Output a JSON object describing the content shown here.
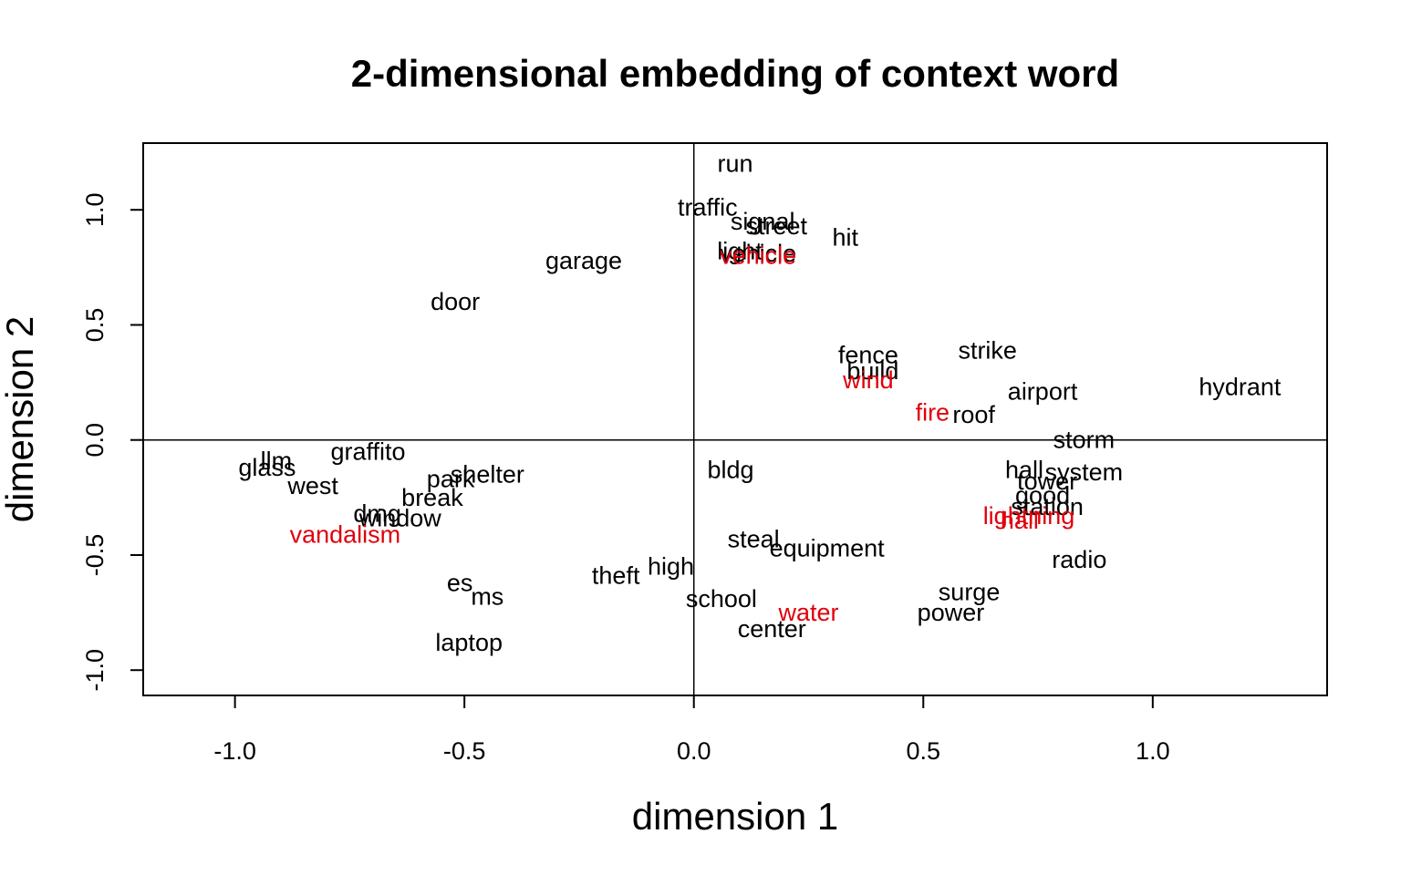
{
  "chart_data": {
    "type": "scatter",
    "title": "2-dimensional embedding of context word",
    "xlabel": "dimension 1",
    "ylabel": "dimension 2",
    "xlim": [
      -1.2,
      1.38
    ],
    "ylim": [
      -1.11,
      1.29
    ],
    "xticks": [
      -1.0,
      -0.5,
      0.0,
      0.5,
      1.0
    ],
    "xtick_labels": [
      "-1.0",
      "-0.5",
      "0.0",
      "0.5",
      "1.0"
    ],
    "yticks": [
      -1.0,
      -0.5,
      0.0,
      0.5,
      1.0
    ],
    "ytick_labels": [
      "-1.0",
      "-0.5",
      "0.0",
      "0.5",
      "1.0"
    ],
    "reference_lines": {
      "x": 0,
      "y": 0
    },
    "grid": false,
    "colors": {
      "context": "#000000",
      "peril": "#e0000b"
    },
    "points": [
      {
        "label": "run",
        "x": 0.09,
        "y": 1.2,
        "group": "context"
      },
      {
        "label": "traffic",
        "x": 0.03,
        "y": 1.01,
        "group": "context"
      },
      {
        "label": "signal",
        "x": 0.15,
        "y": 0.95,
        "group": "context"
      },
      {
        "label": "street",
        "x": 0.18,
        "y": 0.93,
        "group": "context"
      },
      {
        "label": "hit",
        "x": 0.33,
        "y": 0.88,
        "group": "context"
      },
      {
        "label": "light",
        "x": 0.1,
        "y": 0.82,
        "group": "context"
      },
      {
        "label": "vehicle",
        "x": 0.14,
        "y": 0.81,
        "group": "context"
      },
      {
        "label": "vehicle",
        "x": 0.14,
        "y": 0.8,
        "group": "peril"
      },
      {
        "label": "garage",
        "x": -0.24,
        "y": 0.78,
        "group": "context"
      },
      {
        "label": "door",
        "x": -0.52,
        "y": 0.6,
        "group": "context"
      },
      {
        "label": "fence",
        "x": 0.38,
        "y": 0.37,
        "group": "context"
      },
      {
        "label": "strike",
        "x": 0.64,
        "y": 0.39,
        "group": "context"
      },
      {
        "label": "build",
        "x": 0.39,
        "y": 0.3,
        "group": "context"
      },
      {
        "label": "wind",
        "x": 0.38,
        "y": 0.26,
        "group": "peril"
      },
      {
        "label": "airport",
        "x": 0.76,
        "y": 0.21,
        "group": "context"
      },
      {
        "label": "hydrant",
        "x": 1.19,
        "y": 0.23,
        "group": "context"
      },
      {
        "label": "fire",
        "x": 0.52,
        "y": 0.12,
        "group": "peril"
      },
      {
        "label": "roof",
        "x": 0.61,
        "y": 0.11,
        "group": "context"
      },
      {
        "label": "storm",
        "x": 0.85,
        "y": 0.0,
        "group": "context"
      },
      {
        "label": "llm",
        "x": -0.91,
        "y": -0.09,
        "group": "context"
      },
      {
        "label": "graffito",
        "x": -0.71,
        "y": -0.05,
        "group": "context"
      },
      {
        "label": "glass",
        "x": -0.93,
        "y": -0.12,
        "group": "context"
      },
      {
        "label": "shelter",
        "x": -0.45,
        "y": -0.15,
        "group": "context"
      },
      {
        "label": "park",
        "x": -0.53,
        "y": -0.17,
        "group": "context"
      },
      {
        "label": "west",
        "x": -0.83,
        "y": -0.2,
        "group": "context"
      },
      {
        "label": "bldg",
        "x": 0.08,
        "y": -0.13,
        "group": "context"
      },
      {
        "label": "hall",
        "x": 0.72,
        "y": -0.13,
        "group": "context"
      },
      {
        "label": "system",
        "x": 0.85,
        "y": -0.14,
        "group": "context"
      },
      {
        "label": "tower",
        "x": 0.77,
        "y": -0.18,
        "group": "context"
      },
      {
        "label": "break",
        "x": -0.57,
        "y": -0.25,
        "group": "context"
      },
      {
        "label": "good",
        "x": 0.76,
        "y": -0.24,
        "group": "context"
      },
      {
        "label": "station",
        "x": 0.77,
        "y": -0.29,
        "group": "context"
      },
      {
        "label": "dmg",
        "x": -0.69,
        "y": -0.32,
        "group": "context"
      },
      {
        "label": "window",
        "x": -0.64,
        "y": -0.34,
        "group": "context"
      },
      {
        "label": "lightning",
        "x": 0.73,
        "y": -0.33,
        "group": "peril"
      },
      {
        "label": "hail",
        "x": 0.71,
        "y": -0.35,
        "group": "peril"
      },
      {
        "label": "vandalism",
        "x": -0.76,
        "y": -0.41,
        "group": "peril"
      },
      {
        "label": "steal",
        "x": 0.13,
        "y": -0.43,
        "group": "context"
      },
      {
        "label": "equipment",
        "x": 0.29,
        "y": -0.47,
        "group": "context"
      },
      {
        "label": "radio",
        "x": 0.84,
        "y": -0.52,
        "group": "context"
      },
      {
        "label": "high",
        "x": -0.05,
        "y": -0.55,
        "group": "context"
      },
      {
        "label": "theft",
        "x": -0.17,
        "y": -0.59,
        "group": "context"
      },
      {
        "label": "es",
        "x": -0.51,
        "y": -0.62,
        "group": "context"
      },
      {
        "label": "ms",
        "x": -0.45,
        "y": -0.68,
        "group": "context"
      },
      {
        "label": "surge",
        "x": 0.6,
        "y": -0.66,
        "group": "context"
      },
      {
        "label": "school",
        "x": 0.06,
        "y": -0.69,
        "group": "context"
      },
      {
        "label": "water",
        "x": 0.25,
        "y": -0.75,
        "group": "peril"
      },
      {
        "label": "power",
        "x": 0.56,
        "y": -0.75,
        "group": "context"
      },
      {
        "label": "center",
        "x": 0.17,
        "y": -0.82,
        "group": "context"
      },
      {
        "label": "laptop",
        "x": -0.49,
        "y": -0.88,
        "group": "context"
      }
    ]
  }
}
